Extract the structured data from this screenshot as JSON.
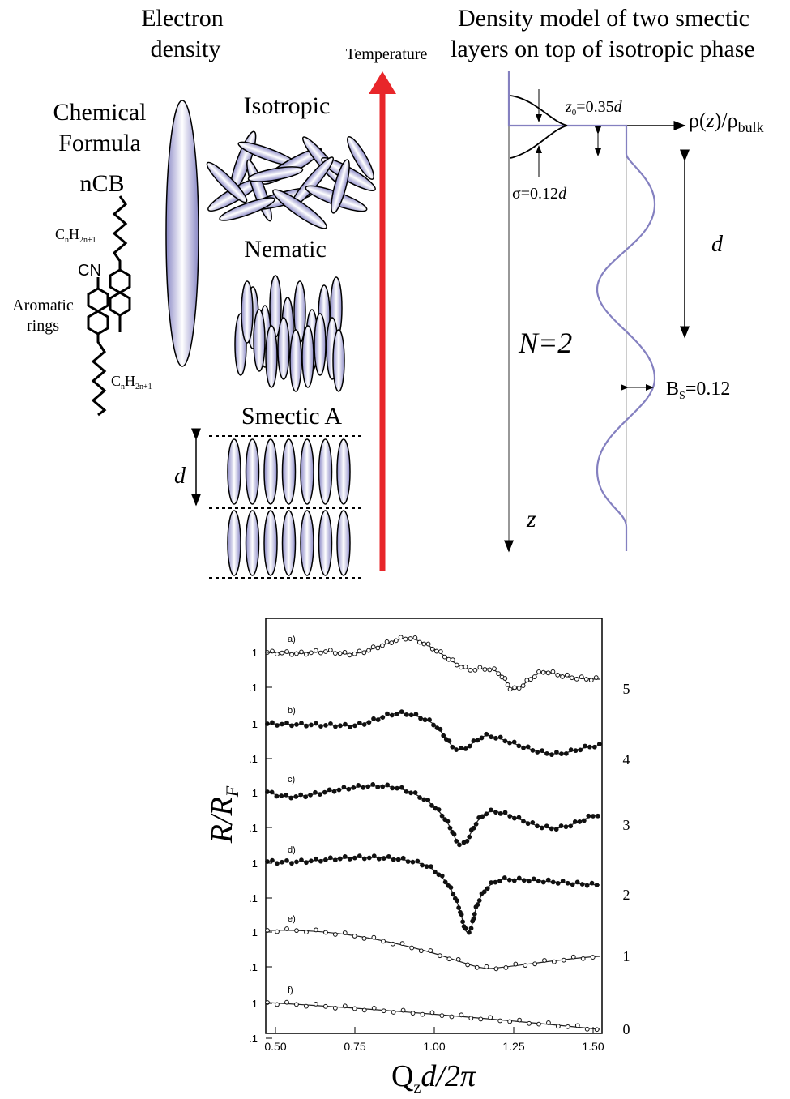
{
  "left": {
    "electron_density": [
      "Electron",
      "density"
    ],
    "temperature": "Temperature",
    "chemical_formula": [
      "Chemical",
      "Formula"
    ],
    "ncb": "nCB",
    "alkyl_top": [
      "C",
      "n",
      "H",
      "2n+1"
    ],
    "cn": "CN",
    "aromatic_rings": [
      "Aromatic",
      "rings"
    ],
    "alkyl_bottom": [
      "C",
      "n",
      "H",
      "2n+1"
    ],
    "phases": [
      "Isotropic",
      "Nematic",
      "Smectic A"
    ],
    "layer_spacing": "d"
  },
  "right": {
    "title": [
      "Density model of two smectic",
      "layers on top of isotropic phase"
    ],
    "z0": [
      "z",
      "0",
      "=0.35",
      "d"
    ],
    "rho": [
      "ρ(",
      "z",
      ")/ρ",
      "bulk"
    ],
    "sigma": [
      "σ=0.12",
      "d"
    ],
    "d": "d",
    "n": "N=2",
    "bs": [
      "B",
      "S",
      "=0.12"
    ],
    "z": "z"
  },
  "plot": {
    "panels": [
      {
        "label": "a)",
        "ticks": [
          "1",
          ".1"
        ],
        "offset": "5"
      },
      {
        "label": "b)",
        "ticks": [
          "1",
          ".1"
        ],
        "offset": "4"
      },
      {
        "label": "c)",
        "ticks": [
          "1",
          ".1"
        ],
        "offset": "3"
      },
      {
        "label": "d)",
        "ticks": [
          "1",
          ".1"
        ],
        "offset": "2"
      },
      {
        "label": "e)",
        "ticks": [
          "1",
          ".1"
        ],
        "offset": "1"
      },
      {
        "label": "f)",
        "ticks": [
          "1",
          ".1"
        ],
        "offset": "0"
      }
    ],
    "x_ticks": [
      "0.50",
      "0.75",
      "1.00",
      "1.25",
      "1.50"
    ],
    "y_label": [
      "R/R",
      "F"
    ],
    "x_label": [
      "Q",
      "z",
      "d/2π"
    ]
  }
}
